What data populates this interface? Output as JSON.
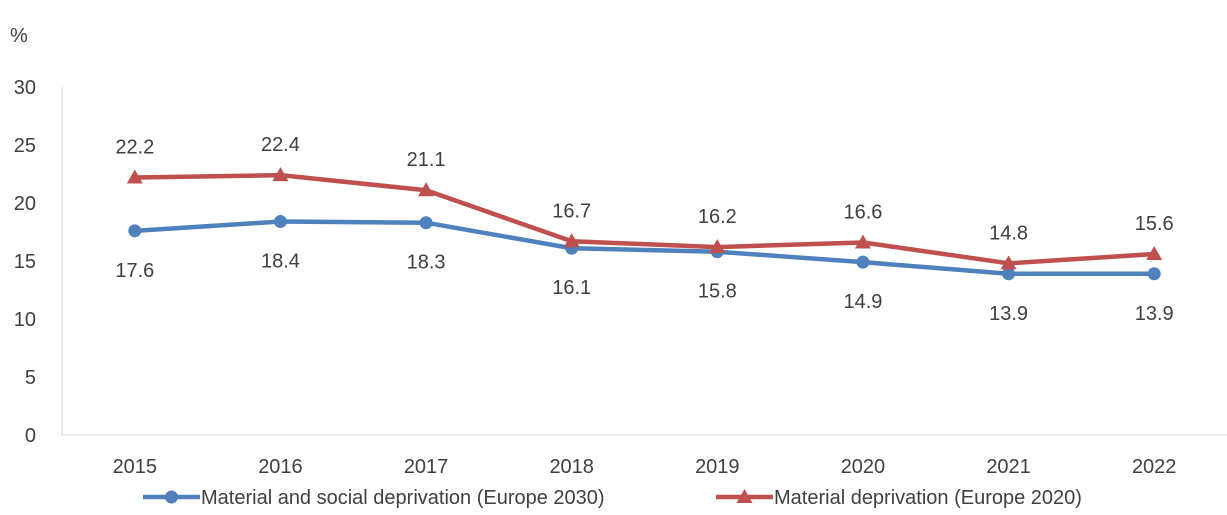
{
  "chart_data": {
    "type": "line",
    "unit_label": "%",
    "categories": [
      "2015",
      "2016",
      "2017",
      "2018",
      "2019",
      "2020",
      "2021",
      "2022"
    ],
    "ylim": [
      0,
      30
    ],
    "yticks": [
      0,
      5,
      10,
      15,
      20,
      25,
      30
    ],
    "grid": false,
    "legend_position": "bottom",
    "series": [
      {
        "name": "Material and social deprivation (Europe 2030)",
        "values": [
          17.6,
          18.4,
          18.3,
          16.1,
          15.8,
          14.9,
          13.9,
          13.9
        ],
        "color": "#4f81bd",
        "marker": "circle",
        "label_position": "below"
      },
      {
        "name": "Material deprivation (Europe 2020)",
        "values": [
          22.2,
          22.4,
          21.1,
          16.7,
          16.2,
          16.6,
          14.8,
          15.6
        ],
        "color": "#c0504d",
        "marker": "triangle",
        "label_position": "above"
      }
    ]
  }
}
